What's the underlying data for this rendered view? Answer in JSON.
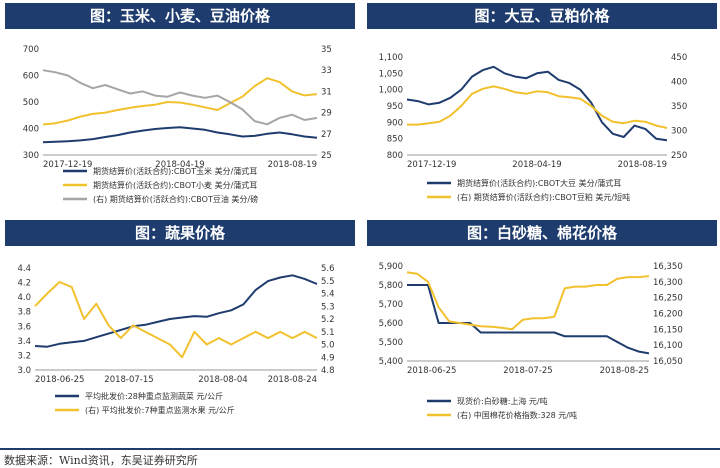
{
  "panels": [
    {
      "title": "图：玉米、小麦、豆油价格"
    },
    {
      "title": "图：大豆、豆粕价格"
    },
    {
      "title": "图：蔬果价格"
    },
    {
      "title": "图：白砂糖、棉花价格"
    }
  ],
  "footer": "数据来源：Wind资讯，东吴证券研究所",
  "colors": {
    "navy": "#1f3c6e",
    "gold": "#f2c12e",
    "gray": "#a6a6a6"
  },
  "chart_data": [
    {
      "type": "line",
      "title": "图：玉米、小麦、豆油价格",
      "x_ticks": [
        "2017-12-19",
        "2018-04-19",
        "2018-08-19"
      ],
      "y_left": {
        "ticks": [
          "300",
          "400",
          "500",
          "600",
          "700"
        ],
        "range": [
          300,
          700
        ]
      },
      "y_right": {
        "ticks": [
          "25",
          "27",
          "29",
          "31",
          "33",
          "35"
        ],
        "range": [
          25,
          35
        ]
      },
      "series": [
        {
          "name": "期货结算价(活跃合约):CBOT玉米 美分/蒲式耳",
          "axis": "left",
          "color": "#1f3c6e",
          "values": [
            348,
            350,
            352,
            355,
            360,
            368,
            375,
            385,
            392,
            398,
            402,
            405,
            400,
            395,
            385,
            378,
            370,
            372,
            380,
            385,
            378,
            370,
            365
          ]
        },
        {
          "name": "期货结算价(活跃合约):CBOT小麦 美分/蒲式耳",
          "axis": "left",
          "color": "#f2c12e",
          "values": [
            415,
            420,
            430,
            445,
            455,
            460,
            470,
            478,
            485,
            490,
            500,
            498,
            490,
            480,
            470,
            495,
            520,
            560,
            590,
            575,
            540,
            525,
            530
          ]
        },
        {
          "name": "(右) 期货结算价(活跃合约):CBOT豆油 美分/磅",
          "axis": "right",
          "color": "#a6a6a6",
          "values": [
            33,
            32.8,
            32.5,
            31.8,
            31.3,
            31.6,
            31.2,
            30.8,
            31.0,
            30.6,
            30.5,
            30.9,
            30.6,
            30.4,
            30.6,
            30.0,
            29.3,
            28.2,
            27.9,
            28.5,
            28.8,
            28.3,
            28.5
          ]
        }
      ]
    },
    {
      "type": "line",
      "title": "图：大豆、豆粕价格",
      "x_ticks": [
        "2017-12-19",
        "2018-04-19",
        "2018-08-19"
      ],
      "y_left": {
        "ticks": [
          "800",
          "850",
          "900",
          "950",
          "1,000",
          "1,050",
          "1,100"
        ],
        "range": [
          800,
          1100
        ]
      },
      "y_right": {
        "ticks": [
          "250",
          "300",
          "350",
          "400",
          "450"
        ],
        "range": [
          250,
          450
        ]
      },
      "series": [
        {
          "name": "期货结算价(活跃合约):CBOT大豆 美分/蒲式耳",
          "axis": "left",
          "color": "#1f3c6e",
          "values": [
            970,
            965,
            955,
            960,
            975,
            1000,
            1040,
            1060,
            1070,
            1050,
            1040,
            1035,
            1050,
            1055,
            1030,
            1020,
            1000,
            960,
            900,
            865,
            855,
            890,
            880,
            850,
            845
          ]
        },
        {
          "name": "(右) 期货结算价(活跃合约):CBOT豆粕 美元/短吨",
          "axis": "right",
          "color": "#f2c12e",
          "values": [
            312,
            312,
            315,
            318,
            330,
            350,
            375,
            385,
            390,
            385,
            378,
            375,
            380,
            378,
            370,
            368,
            365,
            350,
            330,
            318,
            315,
            320,
            318,
            310,
            305
          ]
        }
      ]
    },
    {
      "type": "line",
      "title": "图：蔬果价格",
      "x_ticks": [
        "2018-06-25",
        "2018-07-15",
        "2018-08-04",
        "2018-08-24"
      ],
      "y_left": {
        "ticks": [
          "3.0",
          "3.2",
          "3.4",
          "3.6",
          "3.8",
          "4.0",
          "4.2",
          "4.4"
        ],
        "range": [
          3.0,
          4.4
        ]
      },
      "y_right": {
        "ticks": [
          "4.8",
          "4.9",
          "5.0",
          "5.1",
          "5.2",
          "5.3",
          "5.4",
          "5.5",
          "5.6"
        ],
        "range": [
          4.8,
          5.6
        ]
      },
      "series": [
        {
          "name": "平均批发价:28种重点监测蔬菜 元/公斤",
          "axis": "left",
          "color": "#1f3c6e",
          "values": [
            3.33,
            3.32,
            3.36,
            3.38,
            3.4,
            3.45,
            3.5,
            3.55,
            3.6,
            3.62,
            3.66,
            3.7,
            3.72,
            3.74,
            3.73,
            3.78,
            3.82,
            3.9,
            4.1,
            4.22,
            4.27,
            4.3,
            4.25,
            4.18
          ]
        },
        {
          "name": "(右) 平均批发价:7种重点监测水果 元/公斤",
          "axis": "right",
          "color": "#f2c12e",
          "values": [
            5.3,
            5.4,
            5.49,
            5.45,
            5.2,
            5.32,
            5.15,
            5.05,
            5.15,
            5.1,
            5.05,
            5.0,
            4.9,
            5.1,
            5.0,
            5.05,
            5.0,
            5.05,
            5.1,
            5.05,
            5.1,
            5.05,
            5.1,
            5.05
          ]
        }
      ]
    },
    {
      "type": "line",
      "title": "图：白砂糖、棉花价格",
      "x_ticks": [
        "2018-06-25",
        "2018-07-25",
        "2018-08-25"
      ],
      "y_left": {
        "ticks": [
          "5,400",
          "5,500",
          "5,600",
          "5,700",
          "5,800",
          "5,900"
        ],
        "range": [
          5400,
          5900
        ]
      },
      "y_right": {
        "ticks": [
          "16,050",
          "16,100",
          "16,150",
          "16,200",
          "16,250",
          "16,300",
          "16,350"
        ],
        "range": [
          16050,
          16350
        ]
      },
      "series": [
        {
          "name": "现货价:白砂糖:上海 元/吨",
          "axis": "left",
          "color": "#1f3c6e",
          "values": [
            5800,
            5800,
            5800,
            5600,
            5600,
            5600,
            5600,
            5550,
            5550,
            5550,
            5550,
            5550,
            5550,
            5550,
            5550,
            5530,
            5530,
            5530,
            5530,
            5530,
            5500,
            5470,
            5450,
            5440
          ]
        },
        {
          "name": "(右) 中国棉花价格指数:328 元/吨",
          "axis": "right",
          "color": "#f2c12e",
          "values": [
            16330,
            16325,
            16300,
            16220,
            16175,
            16170,
            16165,
            16160,
            16158,
            16155,
            16150,
            16180,
            16185,
            16185,
            16190,
            16280,
            16285,
            16285,
            16290,
            16290,
            16310,
            16315,
            16315,
            16318
          ]
        }
      ]
    }
  ]
}
